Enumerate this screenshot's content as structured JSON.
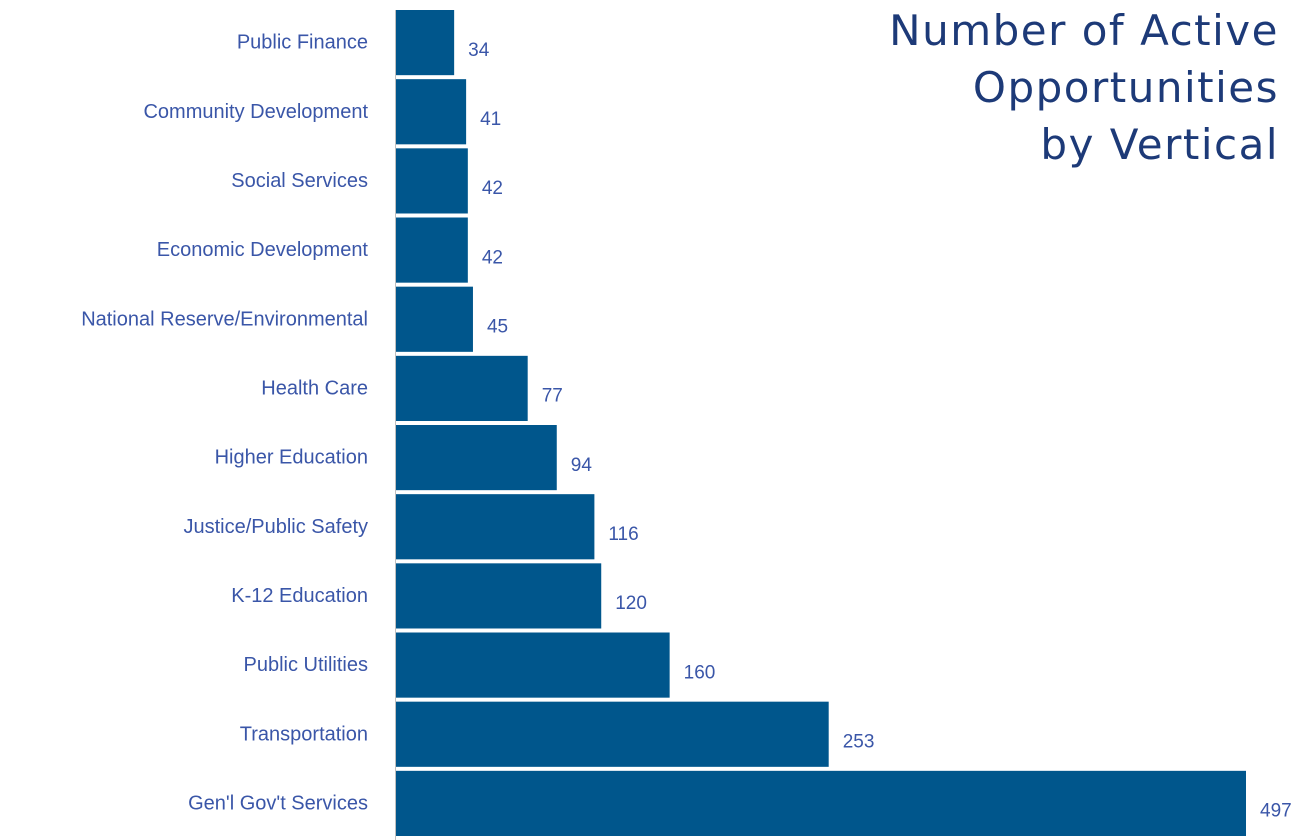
{
  "chart_data": {
    "type": "bar",
    "orientation": "horizontal",
    "title_lines": [
      "Number of Active",
      "Opportunities",
      "by Vertical"
    ],
    "categories": [
      "Public Finance",
      "Community Development",
      "Social Services",
      "Economic Development",
      "National Reserve/Environmental",
      "Health Care",
      "Higher Education",
      "Justice/Public Safety",
      "K-12 Education",
      "Public Utilities",
      "Transportation",
      "Gen'l Gov't Services"
    ],
    "values": [
      34,
      41,
      42,
      42,
      45,
      77,
      94,
      116,
      120,
      160,
      253,
      497
    ],
    "xlim": [
      0,
      497
    ],
    "grid": false,
    "legend": "none",
    "data_labels": true
  },
  "colors": {
    "bar": "#00568c",
    "label_text": "#3a56a8",
    "title_text": "#1d3a78",
    "axis_line": "#bfbfbf"
  }
}
